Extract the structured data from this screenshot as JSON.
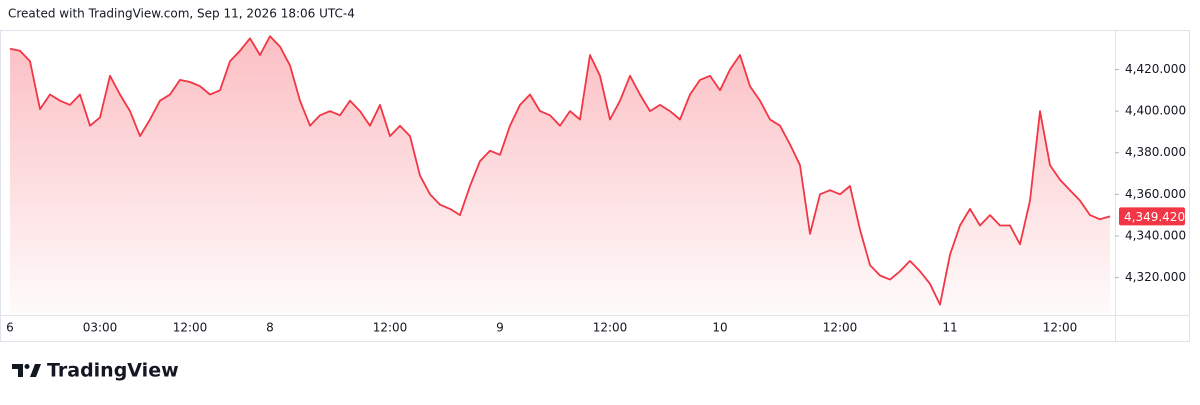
{
  "header": "Created with TradingView.com, Sep 11, 2026 18:06 UTC-4",
  "brand": "TradingView",
  "chart_data": {
    "type": "area",
    "color": "#f23645",
    "categories": [
      "6",
      null,
      null,
      null,
      null,
      null,
      null,
      null,
      null,
      "03:00",
      null,
      null,
      null,
      null,
      null,
      null,
      null,
      null,
      "12:00",
      null,
      null,
      null,
      null,
      null,
      null,
      null,
      "8",
      null,
      null,
      null,
      null,
      null,
      null,
      null,
      null,
      null,
      null,
      null,
      "12:00",
      null,
      null,
      null,
      null,
      null,
      null,
      null,
      null,
      null,
      null,
      "9",
      null,
      null,
      null,
      null,
      null,
      null,
      null,
      null,
      null,
      null,
      "12:00",
      null,
      null,
      null,
      null,
      null,
      null,
      null,
      null,
      null,
      null,
      "10",
      null,
      null,
      null,
      null,
      null,
      null,
      null,
      null,
      null,
      null,
      null,
      "12:00",
      null,
      null,
      null,
      null,
      null,
      null,
      null,
      null,
      null,
      null,
      "11",
      null,
      null,
      null,
      null,
      null,
      null,
      null,
      null,
      null,
      null,
      "12:00",
      null,
      null,
      null,
      null,
      null
    ],
    "values": [
      4430,
      4429,
      4424,
      4401,
      4408,
      4405,
      4403,
      4408,
      4393,
      4397,
      4417,
      4408,
      4400,
      4388,
      4396,
      4405,
      4408,
      4415,
      4414,
      4412,
      4408,
      4410,
      4424,
      4429,
      4435,
      4427,
      4436,
      4431,
      4422,
      4405,
      4393,
      4398,
      4400,
      4398,
      4405,
      4400,
      4393,
      4403,
      4388,
      4393,
      4388,
      4369,
      4360,
      4355,
      4353,
      4350,
      4364,
      4376,
      4381,
      4379,
      4393,
      4403,
      4408,
      4400,
      4398,
      4393,
      4400,
      4396,
      4427,
      4417,
      4396,
      4405,
      4417,
      4408,
      4400,
      4403,
      4400,
      4396,
      4408,
      4415,
      4417,
      4410,
      4420,
      4427,
      4412,
      4405,
      4396,
      4393,
      4384,
      4374,
      4341,
      4360,
      4362,
      4360,
      4364,
      4343,
      4326,
      4321,
      4319,
      4323,
      4328,
      4323,
      4317,
      4307,
      4331,
      4345,
      4353,
      4345,
      4350,
      4345,
      4345,
      4336,
      4357,
      4400,
      4374,
      4367,
      4362,
      4357,
      4350,
      4348,
      4349.42
    ],
    "ylim": [
      4302,
      4439
    ],
    "yticks": [
      {
        "value": 4320,
        "label": "4,320.000"
      },
      {
        "value": 4340,
        "label": "4,340.000"
      },
      {
        "value": 4360,
        "label": "4,360.000"
      },
      {
        "value": 4380,
        "label": "4,380.000"
      },
      {
        "value": 4400,
        "label": "4,400.000"
      },
      {
        "value": 4420,
        "label": "4,420.000"
      }
    ],
    "last_value": {
      "value": 4349.42,
      "label": "4,349.420"
    }
  }
}
